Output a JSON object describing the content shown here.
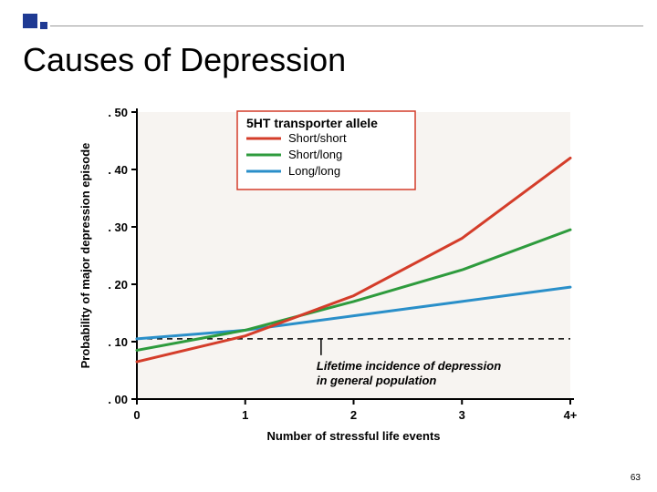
{
  "slide": {
    "title": "Causes of Depression",
    "page_number": "63",
    "accent_color": "#1f3a93",
    "header_line_color": "#999999"
  },
  "chart": {
    "type": "line",
    "background_color": "#f7f4f1",
    "grid_color": "#aaaaaa",
    "axis_color": "#000000",
    "axis_width": 2,
    "line_width": 3,
    "ylabel": "Probability of major depression episode",
    "xlabel": "Number of stressful life events",
    "label_fontsize": 13,
    "tick_fontsize": 13,
    "x_ticks": [
      "0",
      "1",
      "2",
      "3",
      "4+"
    ],
    "y_ticks": [
      ". 00",
      ". 10",
      ". 20",
      ". 30",
      ". 40",
      ". 50"
    ],
    "ylim": [
      0,
      0.5
    ],
    "xlim": [
      0,
      4
    ],
    "legend": {
      "title": "5HT transporter allele",
      "title_fontsize": 14,
      "item_fontsize": 13,
      "border_color": "#d43d2a",
      "bg_color": "#ffffff",
      "items": [
        {
          "label": "Short/short",
          "color": "#d43d2a"
        },
        {
          "label": "Short/long",
          "color": "#2e9b3d"
        },
        {
          "label": "Long/long",
          "color": "#2a8fc9"
        }
      ]
    },
    "series": {
      "short_short": {
        "color": "#d43d2a",
        "points": [
          [
            0,
            0.065
          ],
          [
            1,
            0.11
          ],
          [
            2,
            0.18
          ],
          [
            3,
            0.28
          ],
          [
            4,
            0.42
          ]
        ]
      },
      "short_long": {
        "color": "#2e9b3d",
        "points": [
          [
            0,
            0.085
          ],
          [
            1,
            0.12
          ],
          [
            2,
            0.17
          ],
          [
            3,
            0.225
          ],
          [
            4,
            0.295
          ]
        ]
      },
      "long_long": {
        "color": "#2a8fc9",
        "points": [
          [
            0,
            0.105
          ],
          [
            1,
            0.12
          ],
          [
            2,
            0.145
          ],
          [
            3,
            0.17
          ],
          [
            4,
            0.195
          ]
        ]
      }
    },
    "reference_line": {
      "y": 0.105,
      "style": "dashed",
      "color": "#000000",
      "label_line1": "Lifetime incidence of depression",
      "label_line2": "in general population",
      "label_fontsize": 13
    }
  }
}
